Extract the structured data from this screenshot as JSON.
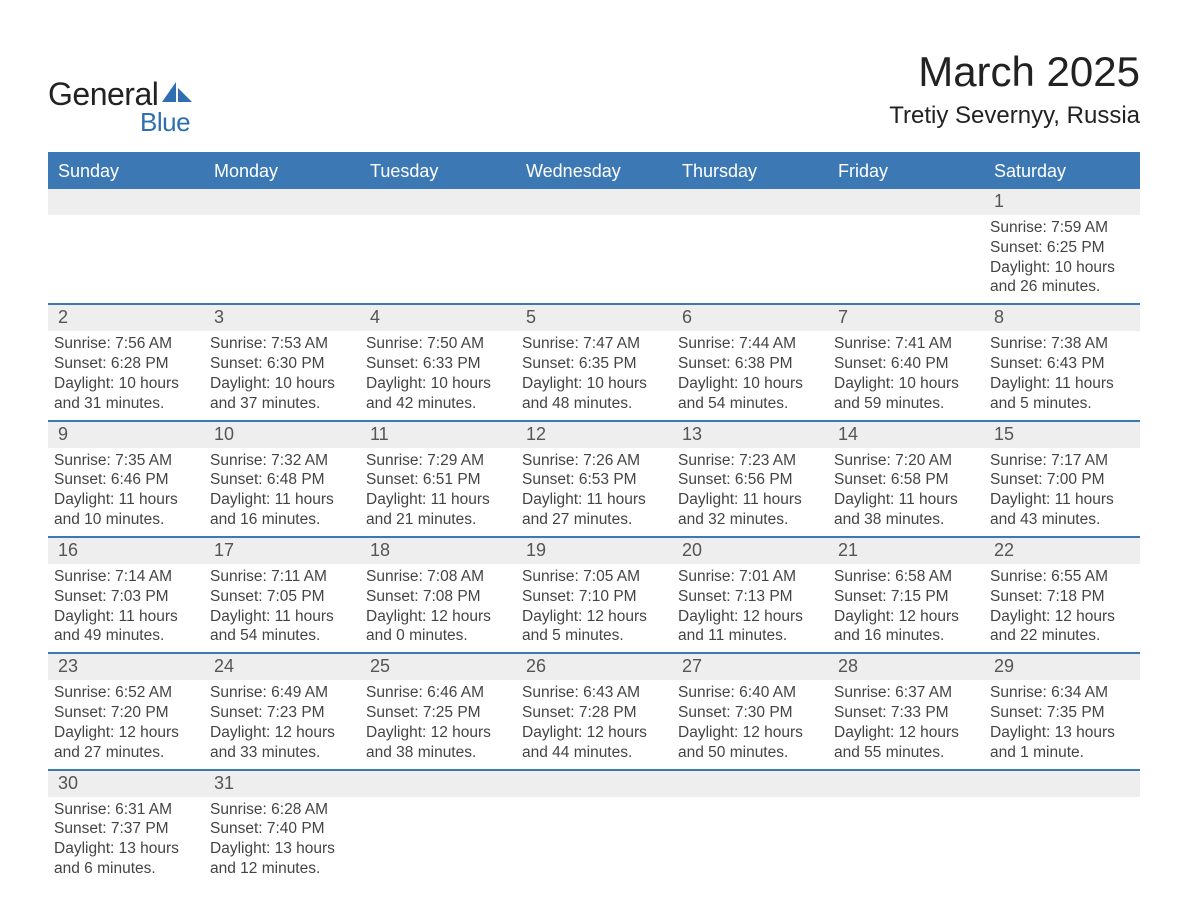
{
  "brand": {
    "name_part1": "General",
    "name_part2": "Blue",
    "logo_dark_color": "#222222",
    "logo_blue_color": "#2f6fb1"
  },
  "title": "March 2025",
  "location": "Tretiy Severnyy, Russia",
  "colors": {
    "header_blue": "#3c79b4",
    "row_gray": "#eeeeee",
    "border_blue": "#3c79b4",
    "background": "#ffffff",
    "text": "#333333"
  },
  "typography": {
    "title_fontsize_pt": 32,
    "location_fontsize_pt": 18,
    "weekday_fontsize_pt": 14,
    "daynum_fontsize_pt": 14,
    "body_fontsize_pt": 12,
    "font_family": "Arial"
  },
  "weekdays": [
    "Sunday",
    "Monday",
    "Tuesday",
    "Wednesday",
    "Thursday",
    "Friday",
    "Saturday"
  ],
  "calendar": {
    "type": "table",
    "columns": 7,
    "rows": 6,
    "start_weekday_index": 6,
    "days_in_month": 31
  },
  "weeks": [
    [
      {
        "n": "",
        "lines": []
      },
      {
        "n": "",
        "lines": []
      },
      {
        "n": "",
        "lines": []
      },
      {
        "n": "",
        "lines": []
      },
      {
        "n": "",
        "lines": []
      },
      {
        "n": "",
        "lines": []
      },
      {
        "n": "1",
        "lines": [
          "Sunrise: 7:59 AM",
          "Sunset: 6:25 PM",
          "Daylight: 10 hours and 26 minutes."
        ]
      }
    ],
    [
      {
        "n": "2",
        "lines": [
          "Sunrise: 7:56 AM",
          "Sunset: 6:28 PM",
          "Daylight: 10 hours and 31 minutes."
        ]
      },
      {
        "n": "3",
        "lines": [
          "Sunrise: 7:53 AM",
          "Sunset: 6:30 PM",
          "Daylight: 10 hours and 37 minutes."
        ]
      },
      {
        "n": "4",
        "lines": [
          "Sunrise: 7:50 AM",
          "Sunset: 6:33 PM",
          "Daylight: 10 hours and 42 minutes."
        ]
      },
      {
        "n": "5",
        "lines": [
          "Sunrise: 7:47 AM",
          "Sunset: 6:35 PM",
          "Daylight: 10 hours and 48 minutes."
        ]
      },
      {
        "n": "6",
        "lines": [
          "Sunrise: 7:44 AM",
          "Sunset: 6:38 PM",
          "Daylight: 10 hours and 54 minutes."
        ]
      },
      {
        "n": "7",
        "lines": [
          "Sunrise: 7:41 AM",
          "Sunset: 6:40 PM",
          "Daylight: 10 hours and 59 minutes."
        ]
      },
      {
        "n": "8",
        "lines": [
          "Sunrise: 7:38 AM",
          "Sunset: 6:43 PM",
          "Daylight: 11 hours and 5 minutes."
        ]
      }
    ],
    [
      {
        "n": "9",
        "lines": [
          "Sunrise: 7:35 AM",
          "Sunset: 6:46 PM",
          "Daylight: 11 hours and 10 minutes."
        ]
      },
      {
        "n": "10",
        "lines": [
          "Sunrise: 7:32 AM",
          "Sunset: 6:48 PM",
          "Daylight: 11 hours and 16 minutes."
        ]
      },
      {
        "n": "11",
        "lines": [
          "Sunrise: 7:29 AM",
          "Sunset: 6:51 PM",
          "Daylight: 11 hours and 21 minutes."
        ]
      },
      {
        "n": "12",
        "lines": [
          "Sunrise: 7:26 AM",
          "Sunset: 6:53 PM",
          "Daylight: 11 hours and 27 minutes."
        ]
      },
      {
        "n": "13",
        "lines": [
          "Sunrise: 7:23 AM",
          "Sunset: 6:56 PM",
          "Daylight: 11 hours and 32 minutes."
        ]
      },
      {
        "n": "14",
        "lines": [
          "Sunrise: 7:20 AM",
          "Sunset: 6:58 PM",
          "Daylight: 11 hours and 38 minutes."
        ]
      },
      {
        "n": "15",
        "lines": [
          "Sunrise: 7:17 AM",
          "Sunset: 7:00 PM",
          "Daylight: 11 hours and 43 minutes."
        ]
      }
    ],
    [
      {
        "n": "16",
        "lines": [
          "Sunrise: 7:14 AM",
          "Sunset: 7:03 PM",
          "Daylight: 11 hours and 49 minutes."
        ]
      },
      {
        "n": "17",
        "lines": [
          "Sunrise: 7:11 AM",
          "Sunset: 7:05 PM",
          "Daylight: 11 hours and 54 minutes."
        ]
      },
      {
        "n": "18",
        "lines": [
          "Sunrise: 7:08 AM",
          "Sunset: 7:08 PM",
          "Daylight: 12 hours and 0 minutes."
        ]
      },
      {
        "n": "19",
        "lines": [
          "Sunrise: 7:05 AM",
          "Sunset: 7:10 PM",
          "Daylight: 12 hours and 5 minutes."
        ]
      },
      {
        "n": "20",
        "lines": [
          "Sunrise: 7:01 AM",
          "Sunset: 7:13 PM",
          "Daylight: 12 hours and 11 minutes."
        ]
      },
      {
        "n": "21",
        "lines": [
          "Sunrise: 6:58 AM",
          "Sunset: 7:15 PM",
          "Daylight: 12 hours and 16 minutes."
        ]
      },
      {
        "n": "22",
        "lines": [
          "Sunrise: 6:55 AM",
          "Sunset: 7:18 PM",
          "Daylight: 12 hours and 22 minutes."
        ]
      }
    ],
    [
      {
        "n": "23",
        "lines": [
          "Sunrise: 6:52 AM",
          "Sunset: 7:20 PM",
          "Daylight: 12 hours and 27 minutes."
        ]
      },
      {
        "n": "24",
        "lines": [
          "Sunrise: 6:49 AM",
          "Sunset: 7:23 PM",
          "Daylight: 12 hours and 33 minutes."
        ]
      },
      {
        "n": "25",
        "lines": [
          "Sunrise: 6:46 AM",
          "Sunset: 7:25 PM",
          "Daylight: 12 hours and 38 minutes."
        ]
      },
      {
        "n": "26",
        "lines": [
          "Sunrise: 6:43 AM",
          "Sunset: 7:28 PM",
          "Daylight: 12 hours and 44 minutes."
        ]
      },
      {
        "n": "27",
        "lines": [
          "Sunrise: 6:40 AM",
          "Sunset: 7:30 PM",
          "Daylight: 12 hours and 50 minutes."
        ]
      },
      {
        "n": "28",
        "lines": [
          "Sunrise: 6:37 AM",
          "Sunset: 7:33 PM",
          "Daylight: 12 hours and 55 minutes."
        ]
      },
      {
        "n": "29",
        "lines": [
          "Sunrise: 6:34 AM",
          "Sunset: 7:35 PM",
          "Daylight: 13 hours and 1 minute."
        ]
      }
    ],
    [
      {
        "n": "30",
        "lines": [
          "Sunrise: 6:31 AM",
          "Sunset: 7:37 PM",
          "Daylight: 13 hours and 6 minutes."
        ]
      },
      {
        "n": "31",
        "lines": [
          "Sunrise: 6:28 AM",
          "Sunset: 7:40 PM",
          "Daylight: 13 hours and 12 minutes."
        ]
      },
      {
        "n": "",
        "lines": []
      },
      {
        "n": "",
        "lines": []
      },
      {
        "n": "",
        "lines": []
      },
      {
        "n": "",
        "lines": []
      },
      {
        "n": "",
        "lines": []
      }
    ]
  ]
}
